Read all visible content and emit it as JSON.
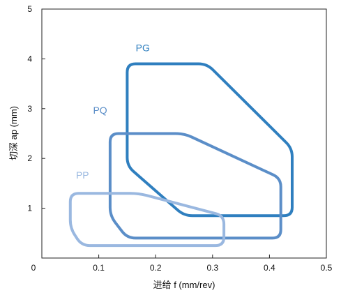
{
  "chart_data": {
    "type": "area",
    "xlabel": "进给 f (mm/rev)",
    "ylabel": "切深 ap (mm)",
    "xlim": [
      0,
      0.5
    ],
    "ylim": [
      0,
      5
    ],
    "x_ticks": [
      "0",
      "0.1",
      "0.2",
      "0.3",
      "0.4",
      "0.5"
    ],
    "y_ticks": [
      "1",
      "2",
      "3",
      "4",
      "5"
    ],
    "grid": false,
    "series": [
      {
        "name": "PG",
        "color": "#2f7fbf",
        "label_at": [
          0.165,
          4.15
        ],
        "polygon": [
          [
            0.15,
            3.9
          ],
          [
            0.29,
            3.9
          ],
          [
            0.44,
            2.2
          ],
          [
            0.44,
            0.85
          ],
          [
            0.25,
            0.85
          ],
          [
            0.15,
            1.85
          ]
        ]
      },
      {
        "name": "PQ",
        "color": "#5b8ec8",
        "label_at": [
          0.09,
          2.9
        ],
        "polygon": [
          [
            0.12,
            2.5
          ],
          [
            0.25,
            2.5
          ],
          [
            0.42,
            1.6
          ],
          [
            0.42,
            0.4
          ],
          [
            0.15,
            0.4
          ],
          [
            0.12,
            0.85
          ]
        ]
      },
      {
        "name": "PP",
        "color": "#9ab8e0",
        "label_at": [
          0.06,
          1.6
        ],
        "polygon": [
          [
            0.05,
            1.3
          ],
          [
            0.17,
            1.3
          ],
          [
            0.32,
            0.85
          ],
          [
            0.32,
            0.25
          ],
          [
            0.07,
            0.25
          ],
          [
            0.05,
            0.6
          ]
        ]
      }
    ]
  }
}
